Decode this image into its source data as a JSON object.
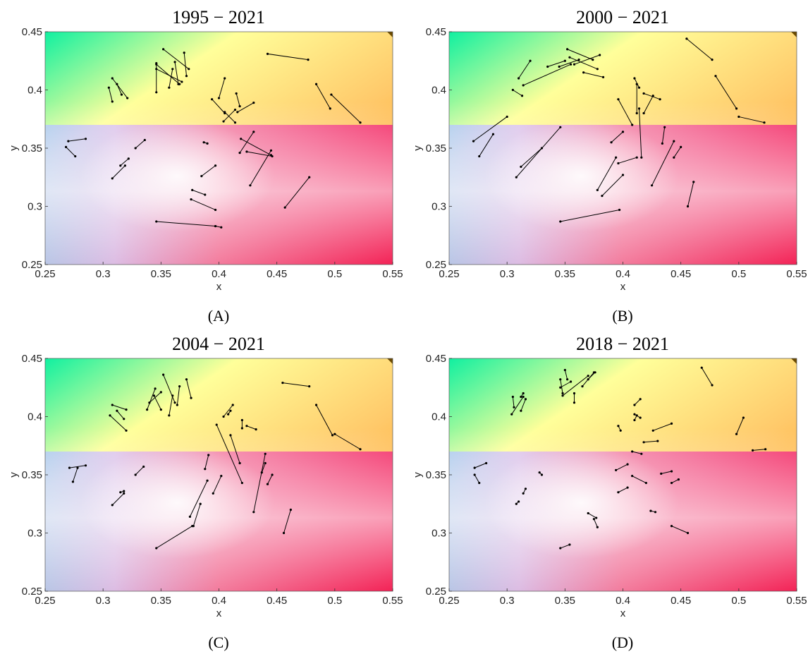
{
  "chart_data": [
    {
      "type": "line",
      "title": "1995 − 2021",
      "panel_label": "(A)",
      "xlabel": "x",
      "ylabel": "y",
      "xlim": [
        0.25,
        0.55
      ],
      "ylim": [
        0.25,
        0.45
      ],
      "xticks": [
        "0.25",
        "0.3",
        "0.35",
        "0.4",
        "0.45",
        "0.5",
        "0.55"
      ],
      "yticks": [
        "0.25",
        "0.3",
        "0.35",
        "0.4",
        "0.45"
      ],
      "background": "CIE-like chromaticity colour gradient",
      "segments": [
        [
          0.346,
          0.422,
          0.366,
          0.405
        ],
        [
          0.346,
          0.418,
          0.368,
          0.407
        ],
        [
          0.352,
          0.435,
          0.374,
          0.418
        ],
        [
          0.346,
          0.398,
          0.346,
          0.423
        ],
        [
          0.357,
          0.402,
          0.36,
          0.418
        ],
        [
          0.365,
          0.405,
          0.362,
          0.424
        ],
        [
          0.372,
          0.412,
          0.37,
          0.432
        ],
        [
          0.442,
          0.431,
          0.477,
          0.426
        ],
        [
          0.308,
          0.41,
          0.321,
          0.393
        ],
        [
          0.305,
          0.402,
          0.308,
          0.39
        ],
        [
          0.312,
          0.405,
          0.316,
          0.396
        ],
        [
          0.484,
          0.405,
          0.496,
          0.384
        ],
        [
          0.497,
          0.396,
          0.522,
          0.372
        ],
        [
          0.394,
          0.392,
          0.405,
          0.38
        ],
        [
          0.4,
          0.393,
          0.405,
          0.41
        ],
        [
          0.415,
          0.397,
          0.418,
          0.386
        ],
        [
          0.416,
          0.381,
          0.43,
          0.389
        ],
        [
          0.405,
          0.381,
          0.414,
          0.372
        ],
        [
          0.404,
          0.373,
          0.414,
          0.383
        ],
        [
          0.27,
          0.356,
          0.285,
          0.358
        ],
        [
          0.268,
          0.351,
          0.276,
          0.343
        ],
        [
          0.328,
          0.35,
          0.336,
          0.357
        ],
        [
          0.418,
          0.346,
          0.43,
          0.364
        ],
        [
          0.419,
          0.358,
          0.445,
          0.344
        ],
        [
          0.424,
          0.347,
          0.446,
          0.343
        ],
        [
          0.427,
          0.318,
          0.445,
          0.348
        ],
        [
          0.387,
          0.355,
          0.39,
          0.354
        ],
        [
          0.385,
          0.326,
          0.397,
          0.335
        ],
        [
          0.315,
          0.335,
          0.322,
          0.341
        ],
        [
          0.308,
          0.324,
          0.319,
          0.335
        ],
        [
          0.377,
          0.314,
          0.388,
          0.31
        ],
        [
          0.376,
          0.306,
          0.397,
          0.297
        ],
        [
          0.457,
          0.299,
          0.478,
          0.325
        ],
        [
          0.346,
          0.287,
          0.397,
          0.283
        ],
        [
          0.397,
          0.283,
          0.402,
          0.282
        ]
      ]
    },
    {
      "type": "line",
      "title": "2000 − 2021",
      "panel_label": "(B)",
      "xlabel": "x",
      "ylabel": "y",
      "xlim": [
        0.25,
        0.55
      ],
      "ylim": [
        0.25,
        0.45
      ],
      "xticks": [
        "0.25",
        "0.3",
        "0.35",
        "0.4",
        "0.45",
        "0.5",
        "0.55"
      ],
      "yticks": [
        "0.25",
        "0.3",
        "0.35",
        "0.4",
        "0.45"
      ],
      "background": "CIE-like chromaticity colour gradient",
      "segments": [
        [
          0.31,
          0.41,
          0.32,
          0.425
        ],
        [
          0.305,
          0.4,
          0.313,
          0.395
        ],
        [
          0.314,
          0.404,
          0.355,
          0.422
        ],
        [
          0.335,
          0.42,
          0.35,
          0.425
        ],
        [
          0.345,
          0.42,
          0.362,
          0.426
        ],
        [
          0.352,
          0.435,
          0.374,
          0.426
        ],
        [
          0.354,
          0.428,
          0.378,
          0.418
        ],
        [
          0.358,
          0.422,
          0.38,
          0.43
        ],
        [
          0.366,
          0.415,
          0.383,
          0.411
        ],
        [
          0.455,
          0.444,
          0.477,
          0.426
        ],
        [
          0.48,
          0.412,
          0.498,
          0.384
        ],
        [
          0.5,
          0.377,
          0.522,
          0.372
        ],
        [
          0.271,
          0.356,
          0.3,
          0.377
        ],
        [
          0.276,
          0.343,
          0.288,
          0.362
        ],
        [
          0.312,
          0.334,
          0.33,
          0.35
        ],
        [
          0.308,
          0.325,
          0.346,
          0.368
        ],
        [
          0.396,
          0.392,
          0.408,
          0.37
        ],
        [
          0.41,
          0.41,
          0.414,
          0.402
        ],
        [
          0.412,
          0.405,
          0.412,
          0.38
        ],
        [
          0.418,
          0.397,
          0.432,
          0.392
        ],
        [
          0.418,
          0.38,
          0.426,
          0.395
        ],
        [
          0.416,
          0.342,
          0.414,
          0.384
        ],
        [
          0.425,
          0.318,
          0.444,
          0.356
        ],
        [
          0.434,
          0.354,
          0.436,
          0.368
        ],
        [
          0.444,
          0.342,
          0.45,
          0.351
        ],
        [
          0.39,
          0.355,
          0.4,
          0.364
        ],
        [
          0.378,
          0.314,
          0.394,
          0.342
        ],
        [
          0.382,
          0.309,
          0.4,
          0.327
        ],
        [
          0.396,
          0.337,
          0.412,
          0.342
        ],
        [
          0.456,
          0.3,
          0.461,
          0.321
        ],
        [
          0.346,
          0.287,
          0.397,
          0.297
        ]
      ]
    },
    {
      "type": "line",
      "title": "2004 − 2021",
      "panel_label": "(C)",
      "xlabel": "x",
      "ylabel": "y",
      "xlim": [
        0.25,
        0.55
      ],
      "ylim": [
        0.25,
        0.45
      ],
      "xticks": [
        "0.25",
        "0.3",
        "0.35",
        "0.4",
        "0.45",
        "0.5",
        "0.55"
      ],
      "yticks": [
        "0.25",
        "0.3",
        "0.35",
        "0.4",
        "0.45"
      ],
      "background": "CIE-like chromaticity colour gradient",
      "segments": [
        [
          0.338,
          0.406,
          0.345,
          0.424
        ],
        [
          0.34,
          0.412,
          0.35,
          0.421
        ],
        [
          0.344,
          0.418,
          0.35,
          0.406
        ],
        [
          0.352,
          0.436,
          0.362,
          0.412
        ],
        [
          0.357,
          0.401,
          0.36,
          0.418
        ],
        [
          0.364,
          0.41,
          0.366,
          0.426
        ],
        [
          0.372,
          0.432,
          0.376,
          0.416
        ],
        [
          0.455,
          0.429,
          0.478,
          0.426
        ],
        [
          0.308,
          0.41,
          0.32,
          0.406
        ],
        [
          0.306,
          0.401,
          0.32,
          0.388
        ],
        [
          0.312,
          0.405,
          0.318,
          0.398
        ],
        [
          0.484,
          0.41,
          0.498,
          0.384
        ],
        [
          0.5,
          0.385,
          0.522,
          0.372
        ],
        [
          0.398,
          0.393,
          0.42,
          0.343
        ],
        [
          0.404,
          0.4,
          0.412,
          0.41
        ],
        [
          0.408,
          0.402,
          0.41,
          0.405
        ],
        [
          0.42,
          0.397,
          0.42,
          0.39
        ],
        [
          0.424,
          0.392,
          0.432,
          0.389
        ],
        [
          0.41,
          0.384,
          0.418,
          0.36
        ],
        [
          0.271,
          0.356,
          0.285,
          0.358
        ],
        [
          0.274,
          0.344,
          0.278,
          0.356
        ],
        [
          0.328,
          0.35,
          0.335,
          0.357
        ],
        [
          0.43,
          0.318,
          0.44,
          0.368
        ],
        [
          0.437,
          0.352,
          0.44,
          0.36
        ],
        [
          0.442,
          0.342,
          0.446,
          0.35
        ],
        [
          0.388,
          0.355,
          0.391,
          0.367
        ],
        [
          0.375,
          0.314,
          0.39,
          0.345
        ],
        [
          0.378,
          0.306,
          0.384,
          0.325
        ],
        [
          0.315,
          0.335,
          0.318,
          0.336
        ],
        [
          0.308,
          0.324,
          0.318,
          0.334
        ],
        [
          0.395,
          0.334,
          0.402,
          0.349
        ],
        [
          0.456,
          0.3,
          0.462,
          0.32
        ],
        [
          0.346,
          0.287,
          0.377,
          0.306
        ]
      ]
    },
    {
      "type": "line",
      "title": "2018 − 2021",
      "panel_label": "(D)",
      "xlabel": "x",
      "ylabel": "y",
      "xlim": [
        0.25,
        0.55
      ],
      "ylim": [
        0.25,
        0.45
      ],
      "xticks": [
        "0.25",
        "0.3",
        "0.35",
        "0.4",
        "0.45",
        "0.5",
        "0.55"
      ],
      "yticks": [
        "0.25",
        "0.3",
        "0.35",
        "0.4",
        "0.45"
      ],
      "background": "CIE-like chromaticity colour gradient",
      "segments": [
        [
          0.304,
          0.402,
          0.314,
          0.417
        ],
        [
          0.305,
          0.417,
          0.306,
          0.408
        ],
        [
          0.312,
          0.405,
          0.316,
          0.415
        ],
        [
          0.312,
          0.417,
          0.314,
          0.42
        ],
        [
          0.346,
          0.425,
          0.355,
          0.43
        ],
        [
          0.348,
          0.42,
          0.346,
          0.432
        ],
        [
          0.35,
          0.44,
          0.352,
          0.432
        ],
        [
          0.348,
          0.418,
          0.37,
          0.435
        ],
        [
          0.358,
          0.412,
          0.358,
          0.42
        ],
        [
          0.365,
          0.426,
          0.375,
          0.438
        ],
        [
          0.37,
          0.432,
          0.376,
          0.438
        ],
        [
          0.468,
          0.442,
          0.477,
          0.427
        ],
        [
          0.498,
          0.385,
          0.504,
          0.399
        ],
        [
          0.512,
          0.371,
          0.523,
          0.372
        ],
        [
          0.41,
          0.41,
          0.415,
          0.415
        ],
        [
          0.41,
          0.402,
          0.415,
          0.399
        ],
        [
          0.41,
          0.397,
          0.412,
          0.401
        ],
        [
          0.396,
          0.392,
          0.398,
          0.388
        ],
        [
          0.418,
          0.378,
          0.43,
          0.379
        ],
        [
          0.426,
          0.388,
          0.442,
          0.394
        ],
        [
          0.272,
          0.356,
          0.282,
          0.36
        ],
        [
          0.272,
          0.35,
          0.276,
          0.343
        ],
        [
          0.328,
          0.352,
          0.33,
          0.35
        ],
        [
          0.394,
          0.354,
          0.404,
          0.359
        ],
        [
          0.408,
          0.349,
          0.42,
          0.343
        ],
        [
          0.408,
          0.37,
          0.416,
          0.368
        ],
        [
          0.433,
          0.351,
          0.442,
          0.353
        ],
        [
          0.442,
          0.343,
          0.448,
          0.346
        ],
        [
          0.396,
          0.335,
          0.404,
          0.339
        ],
        [
          0.424,
          0.319,
          0.428,
          0.318
        ],
        [
          0.308,
          0.325,
          0.31,
          0.327
        ],
        [
          0.314,
          0.334,
          0.316,
          0.338
        ],
        [
          0.37,
          0.317,
          0.377,
          0.313
        ],
        [
          0.375,
          0.312,
          0.378,
          0.305
        ],
        [
          0.442,
          0.306,
          0.456,
          0.3
        ],
        [
          0.346,
          0.287,
          0.354,
          0.29
        ]
      ]
    }
  ]
}
